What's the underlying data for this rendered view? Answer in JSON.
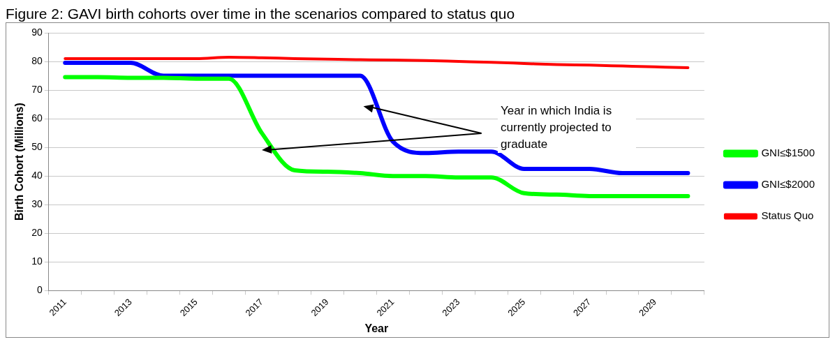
{
  "chart_data": {
    "type": "line",
    "title": "Figure 2: GAVI birth cohorts over time in the scenarios compared to status quo",
    "xlabel": "Year",
    "ylabel": "Birth Cohort (Millions)",
    "categories": [
      "2011",
      null,
      "2013",
      null,
      "2015",
      null,
      "2017",
      null,
      "2019",
      null,
      "2021",
      null,
      "2023",
      null,
      "2025",
      null,
      "2027",
      null,
      "2029",
      null
    ],
    "series": [
      {
        "name": "GNI≤$1500",
        "color": "#00ff00",
        "values": [
          74.5,
          74.5,
          74.3,
          74.3,
          74,
          74,
          55,
          42,
          41.5,
          41,
          40,
          40,
          39.5,
          39.5,
          34,
          33.5,
          33,
          33,
          33,
          33
        ]
      },
      {
        "name": "GNI≤$2000",
        "color": "#0000ff",
        "values": [
          79.5,
          79.5,
          79.5,
          75,
          75,
          75,
          75,
          75,
          75,
          75,
          52,
          48,
          48.5,
          48.5,
          42.5,
          42.5,
          42.5,
          41,
          41,
          41
        ]
      },
      {
        "name": "Status Quo",
        "color": "#ff0000",
        "values": [
          81,
          81,
          81,
          81,
          81,
          81.5,
          81.3,
          81,
          80.8,
          80.6,
          80.5,
          80.3,
          80,
          79.7,
          79.3,
          78.9,
          78.7,
          78.4,
          78.1,
          77.8
        ]
      }
    ],
    "ylim": [
      0,
      90
    ],
    "yticks": [
      0,
      10,
      20,
      30,
      40,
      50,
      60,
      70,
      80,
      90
    ],
    "grid": "y",
    "legend": "right",
    "marker": "none",
    "line_style": "solid",
    "annotations": [
      "Year in which India is currently projected to graduate"
    ]
  }
}
